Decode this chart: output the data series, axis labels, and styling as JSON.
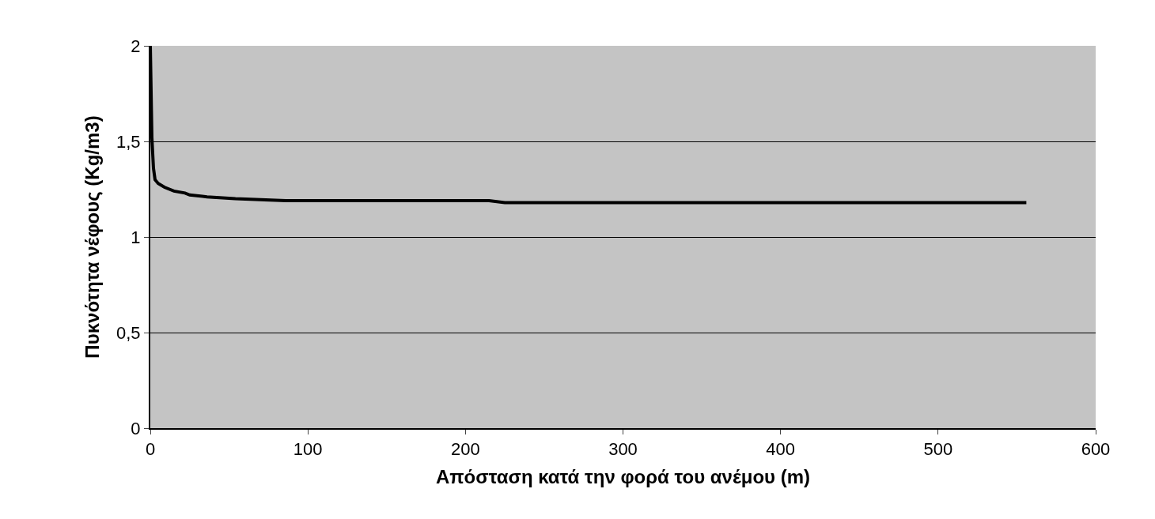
{
  "chart_data": {
    "type": "line",
    "xlabel": "Απόσταση κατά την φορά του ανέμου (m)",
    "ylabel": "Πυκνότητα νέφους (Kg/m3)",
    "x": [
      0,
      1,
      2,
      3,
      5,
      9,
      15,
      22,
      25,
      36,
      54,
      86,
      215,
      225,
      556
    ],
    "series": [
      {
        "color": "#000000",
        "values": [
          2,
          1.52,
          1.36,
          1.3,
          1.28,
          1.26,
          1.24,
          1.23,
          1.22,
          1.21,
          1.2,
          1.19,
          1.19,
          1.18,
          1.18
        ]
      }
    ],
    "xlim": [
      0,
      600
    ],
    "xticks": [
      0,
      100,
      200,
      300,
      400,
      500,
      600
    ],
    "ylim": [
      0,
      2
    ],
    "yticks": [
      0,
      {
        "value": 0.5,
        "label": "0,5"
      },
      1,
      {
        "value": 1.5,
        "label": "1,5"
      },
      2
    ],
    "grid": "y",
    "marker": "none",
    "line_style": "solid"
  }
}
